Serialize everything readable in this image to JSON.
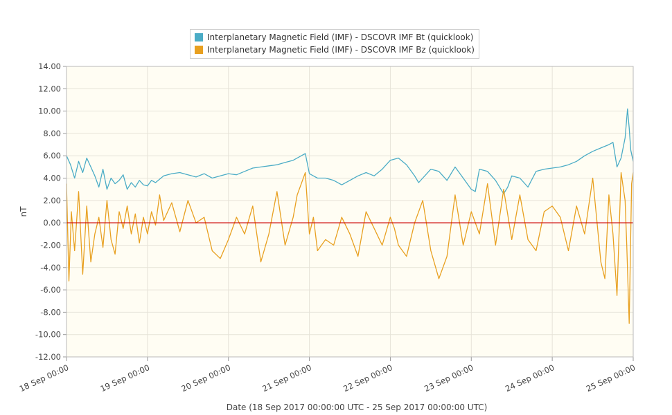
{
  "chart_data": {
    "type": "line",
    "title": "",
    "xlabel": "Date (18 Sep 2017 00:00:00 UTC - 25 Sep 2017 00:00:00 UTC)",
    "ylabel": "nT",
    "ylim": [
      -12,
      14
    ],
    "yticks": [
      14,
      12,
      10,
      8,
      6,
      4,
      2,
      0,
      -2,
      -4,
      -6,
      -8,
      -10,
      -12
    ],
    "ytick_labels": [
      "14.00",
      "12.00",
      "10.00",
      "8.00",
      "6.00",
      "4.00",
      "2.00",
      "0.00",
      "-2.00",
      "-4.00",
      "-6.00",
      "-8.00",
      "-10.00",
      "-12.00"
    ],
    "xlim": [
      0,
      7
    ],
    "xticks": [
      0,
      1,
      2,
      3,
      4,
      5,
      6,
      7
    ],
    "xtick_labels": [
      "18 Sep 00:00",
      "19 Sep 00:00",
      "20 Sep 00:00",
      "21 Sep 00:00",
      "22 Sep 00:00",
      "23 Sep 00:00",
      "24 Sep 00:00",
      "25 Sep 00:00"
    ],
    "x_units": "days since 18 Sep 2017 00:00 UTC",
    "grid": true,
    "legend_position": "top-center",
    "zero_line_color": "#cc0000",
    "series": [
      {
        "name": "Interplanetary Magnetic Field (IMF) - DSCOVR IMF Bt (quicklook)",
        "color": "#4bacc6",
        "x": [
          0,
          0.05,
          0.1,
          0.15,
          0.2,
          0.25,
          0.3,
          0.35,
          0.4,
          0.45,
          0.5,
          0.55,
          0.6,
          0.65,
          0.7,
          0.75,
          0.8,
          0.85,
          0.9,
          0.95,
          1.0,
          1.05,
          1.1,
          1.2,
          1.3,
          1.4,
          1.5,
          1.6,
          1.7,
          1.8,
          1.9,
          2.0,
          2.1,
          2.2,
          2.3,
          2.4,
          2.5,
          2.6,
          2.7,
          2.8,
          2.9,
          2.95,
          3.0,
          3.05,
          3.1,
          3.2,
          3.3,
          3.4,
          3.5,
          3.6,
          3.7,
          3.8,
          3.9,
          4.0,
          4.1,
          4.2,
          4.3,
          4.35,
          4.4,
          4.5,
          4.6,
          4.7,
          4.8,
          4.9,
          5.0,
          5.05,
          5.1,
          5.2,
          5.3,
          5.4,
          5.45,
          5.5,
          5.6,
          5.7,
          5.8,
          5.9,
          6.0,
          6.1,
          6.2,
          6.3,
          6.4,
          6.5,
          6.6,
          6.7,
          6.75,
          6.8,
          6.85,
          6.9,
          6.93,
          6.95,
          6.97,
          7.0
        ],
        "y": [
          6.0,
          5.2,
          4.0,
          5.5,
          4.5,
          5.8,
          5.0,
          4.2,
          3.2,
          4.8,
          3.0,
          4.0,
          3.5,
          3.8,
          4.3,
          3.0,
          3.6,
          3.2,
          3.8,
          3.4,
          3.3,
          3.8,
          3.6,
          4.2,
          4.4,
          4.5,
          4.3,
          4.1,
          4.4,
          4.0,
          4.2,
          4.4,
          4.3,
          4.6,
          4.9,
          5.0,
          5.1,
          5.2,
          5.4,
          5.6,
          6.0,
          6.2,
          4.4,
          4.2,
          4.0,
          4.0,
          3.8,
          3.4,
          3.8,
          4.2,
          4.5,
          4.2,
          4.8,
          5.6,
          5.8,
          5.2,
          4.2,
          3.6,
          4.0,
          4.8,
          4.6,
          3.8,
          5.0,
          4.0,
          3.0,
          2.8,
          4.8,
          4.6,
          3.8,
          2.6,
          3.2,
          4.2,
          4.0,
          3.2,
          4.6,
          4.8,
          4.9,
          5.0,
          5.2,
          5.5,
          6.0,
          6.4,
          6.7,
          7.0,
          7.2,
          5.0,
          5.8,
          7.6,
          10.2,
          8.5,
          6.5,
          5.5
        ]
      },
      {
        "name": "Interplanetary Magnetic Field (IMF) - DSCOVR IMF Bz (quicklook)",
        "color": "#e8a020",
        "x": [
          0,
          0.03,
          0.06,
          0.1,
          0.15,
          0.2,
          0.25,
          0.3,
          0.35,
          0.4,
          0.45,
          0.5,
          0.55,
          0.6,
          0.65,
          0.7,
          0.75,
          0.8,
          0.85,
          0.9,
          0.95,
          1.0,
          1.05,
          1.1,
          1.15,
          1.2,
          1.3,
          1.4,
          1.5,
          1.6,
          1.7,
          1.8,
          1.9,
          2.0,
          2.1,
          2.2,
          2.3,
          2.4,
          2.5,
          2.6,
          2.7,
          2.8,
          2.85,
          2.9,
          2.95,
          3.0,
          3.05,
          3.1,
          3.2,
          3.3,
          3.4,
          3.5,
          3.6,
          3.7,
          3.8,
          3.9,
          4.0,
          4.05,
          4.1,
          4.2,
          4.3,
          4.4,
          4.5,
          4.6,
          4.7,
          4.8,
          4.9,
          5.0,
          5.1,
          5.2,
          5.3,
          5.4,
          5.5,
          5.6,
          5.7,
          5.8,
          5.9,
          6.0,
          6.1,
          6.2,
          6.3,
          6.4,
          6.5,
          6.6,
          6.65,
          6.7,
          6.75,
          6.8,
          6.85,
          6.9,
          6.92,
          6.95,
          6.98,
          7.0
        ],
        "y": [
          3.5,
          -5.2,
          1.0,
          -2.5,
          2.8,
          -4.6,
          1.5,
          -3.5,
          -1.0,
          0.5,
          -2.2,
          2.0,
          -1.5,
          -2.8,
          1.0,
          -0.5,
          1.5,
          -1.0,
          0.8,
          -1.8,
          0.5,
          -1.0,
          1.0,
          -0.2,
          2.5,
          0.2,
          1.8,
          -0.8,
          2.0,
          0.0,
          0.5,
          -2.5,
          -3.2,
          -1.5,
          0.5,
          -1.0,
          1.5,
          -3.5,
          -1.0,
          2.8,
          -2.0,
          0.5,
          2.5,
          3.5,
          4.5,
          -1.0,
          0.5,
          -2.5,
          -1.5,
          -2.0,
          0.5,
          -1.0,
          -3.0,
          1.0,
          -0.5,
          -2.0,
          0.5,
          -0.5,
          -2.0,
          -3.0,
          0.0,
          2.0,
          -2.5,
          -5.0,
          -3.0,
          2.5,
          -2.0,
          1.0,
          -1.0,
          3.5,
          -2.0,
          3.0,
          -1.5,
          2.5,
          -1.5,
          -2.5,
          1.0,
          1.5,
          0.5,
          -2.5,
          1.5,
          -1.0,
          4.0,
          -3.5,
          -5.0,
          2.5,
          -1.0,
          -6.5,
          4.5,
          2.0,
          -2.0,
          -9.0,
          3.5,
          4.5
        ]
      }
    ]
  }
}
